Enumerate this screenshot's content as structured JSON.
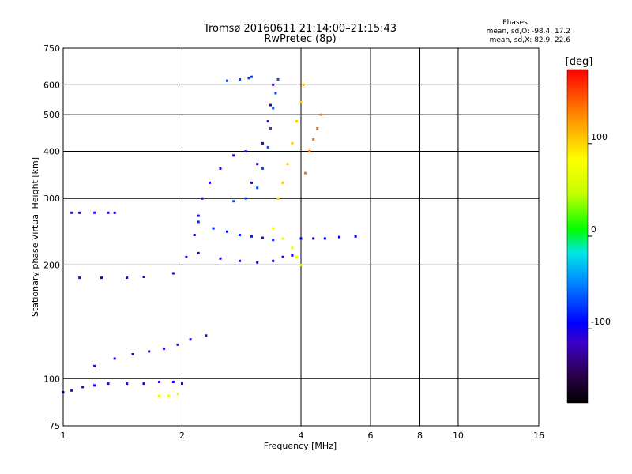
{
  "chart_data": {
    "type": "scatter",
    "title": "Tromsø 20160611 21:14:00–21:15:43",
    "subtitle": "RwPretec (8p)",
    "xlabel": "Frequency [MHz]",
    "ylabel": "Stationary phase Virtual Height [km]",
    "x_scale": "log",
    "y_scale": "log",
    "xlim": [
      1,
      16
    ],
    "ylim": [
      75,
      750
    ],
    "x_ticks": [
      1,
      2,
      4,
      6,
      8,
      10,
      16
    ],
    "x_tick_labels": [
      "1",
      "2",
      "4",
      "6",
      "8",
      "10",
      "16"
    ],
    "y_ticks": [
      75,
      100,
      200,
      300,
      400,
      500,
      600,
      750
    ],
    "y_tick_labels": [
      "75",
      "100",
      "200",
      "300",
      "400",
      "500",
      "600",
      "750"
    ],
    "grid": true,
    "stats": {
      "heading": "Phases",
      "line_o": "mean, sd,O: -98.4, 17.2",
      "line_x": "mean, sd,X:  82.9, 22.6"
    },
    "colorbar": {
      "label": "[deg]",
      "range": [
        -180,
        180
      ],
      "ticks": [
        100,
        0,
        -100
      ],
      "tick_labels": [
        "100",
        "0",
        "-100"
      ]
    },
    "traces": [
      {
        "phase": -105,
        "points": [
          [
            1.0,
            92
          ],
          [
            1.05,
            93
          ],
          [
            1.12,
            95
          ],
          [
            1.2,
            96
          ],
          [
            1.3,
            97
          ],
          [
            1.45,
            97
          ],
          [
            1.6,
            97
          ],
          [
            1.75,
            98
          ],
          [
            1.9,
            98
          ],
          [
            2.0,
            97
          ]
        ]
      },
      {
        "phase": -110,
        "points": [
          [
            1.2,
            108
          ],
          [
            1.35,
            113
          ],
          [
            1.5,
            116
          ],
          [
            1.65,
            118
          ],
          [
            1.8,
            120
          ],
          [
            1.95,
            123
          ],
          [
            2.1,
            127
          ],
          [
            2.3,
            130
          ]
        ]
      },
      {
        "phase": -102,
        "points": [
          [
            1.05,
            275
          ],
          [
            1.1,
            275
          ],
          [
            1.2,
            275
          ],
          [
            1.3,
            275
          ],
          [
            1.35,
            275
          ]
        ]
      },
      {
        "phase": -104,
        "points": [
          [
            1.1,
            185
          ],
          [
            1.25,
            185
          ],
          [
            1.45,
            185
          ],
          [
            1.6,
            186
          ]
        ]
      },
      {
        "phase": -108,
        "points": [
          [
            1.9,
            190
          ],
          [
            2.05,
            210
          ],
          [
            2.15,
            240
          ],
          [
            2.2,
            270
          ],
          [
            2.25,
            300
          ],
          [
            2.35,
            330
          ],
          [
            2.5,
            360
          ],
          [
            2.7,
            390
          ],
          [
            2.9,
            400
          ]
        ]
      },
      {
        "phase": -85,
        "points": [
          [
            2.2,
            260
          ],
          [
            2.4,
            250
          ],
          [
            2.6,
            245
          ],
          [
            2.8,
            240
          ],
          [
            3.0,
            238
          ],
          [
            3.2,
            236
          ],
          [
            3.4,
            233
          ]
        ]
      },
      {
        "phase": -100,
        "points": [
          [
            2.2,
            215
          ],
          [
            2.5,
            208
          ],
          [
            2.8,
            205
          ],
          [
            3.1,
            203
          ],
          [
            3.4,
            205
          ],
          [
            3.6,
            210
          ],
          [
            3.8,
            212
          ]
        ]
      },
      {
        "phase": -70,
        "points": [
          [
            2.7,
            295
          ],
          [
            2.9,
            300
          ],
          [
            3.1,
            320
          ],
          [
            3.2,
            360
          ],
          [
            3.3,
            410
          ],
          [
            3.35,
            460
          ],
          [
            3.4,
            520
          ],
          [
            3.45,
            570
          ],
          [
            3.5,
            620
          ]
        ]
      },
      {
        "phase": -120,
        "points": [
          [
            3.0,
            330
          ],
          [
            3.1,
            370
          ],
          [
            3.2,
            420
          ],
          [
            3.3,
            480
          ],
          [
            3.35,
            530
          ],
          [
            3.4,
            600
          ]
        ]
      },
      {
        "phase": 105,
        "points": [
          [
            3.5,
            300
          ],
          [
            3.6,
            330
          ],
          [
            3.7,
            370
          ],
          [
            3.8,
            420
          ],
          [
            3.9,
            480
          ],
          [
            4.0,
            540
          ],
          [
            4.05,
            600
          ]
        ]
      },
      {
        "phase": 140,
        "points": [
          [
            4.1,
            350
          ],
          [
            4.2,
            400
          ],
          [
            4.3,
            430
          ],
          [
            4.4,
            460
          ],
          [
            4.5,
            500
          ]
        ]
      },
      {
        "phase": 70,
        "points": [
          [
            3.4,
            250
          ],
          [
            3.6,
            235
          ],
          [
            3.8,
            222
          ],
          [
            3.9,
            210
          ],
          [
            4.0,
            200
          ]
        ]
      },
      {
        "phase": -95,
        "points": [
          [
            4.0,
            235
          ],
          [
            4.3,
            235
          ],
          [
            4.6,
            235
          ],
          [
            5.0,
            237
          ],
          [
            5.5,
            238
          ]
        ]
      },
      {
        "phase": -75,
        "points": [
          [
            2.6,
            615
          ],
          [
            2.8,
            620
          ],
          [
            2.95,
            625
          ],
          [
            3.0,
            630
          ]
        ]
      },
      {
        "phase": 75,
        "points": [
          [
            1.75,
            90
          ],
          [
            1.85,
            90
          ],
          [
            1.95,
            91
          ]
        ]
      }
    ]
  }
}
